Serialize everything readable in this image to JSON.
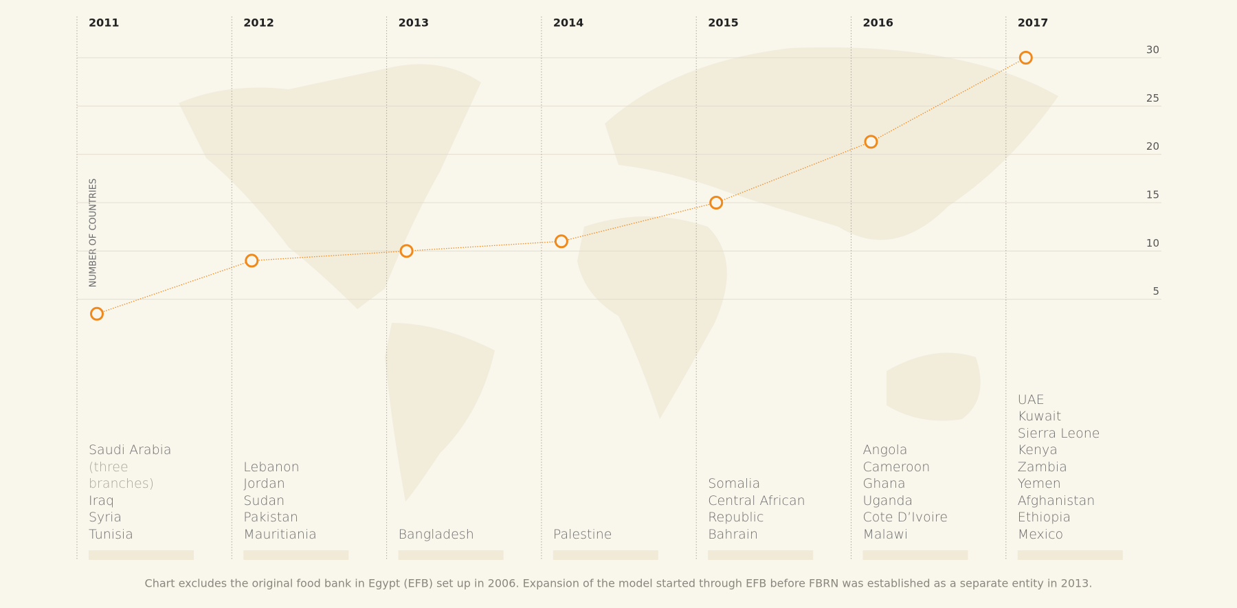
{
  "chart_data": {
    "type": "line",
    "categories": [
      "2011",
      "2012",
      "2013",
      "2014",
      "2015",
      "2016",
      "2017"
    ],
    "values": [
      3.5,
      9,
      10,
      11,
      15,
      21.3,
      30
    ],
    "color": "#f0891c",
    "y_label": "NUMBER OF COUNTRIES",
    "ylim": [
      0,
      30
    ],
    "yticks": [
      5,
      10,
      15,
      20,
      25,
      30
    ],
    "grid": true,
    "countries": [
      [
        {
          "text": "Saudi Arabia"
        },
        {
          "text": "(three branches)",
          "muted": true
        },
        {
          "text": "Iraq"
        },
        {
          "text": "Syria"
        },
        {
          "text": "Tunisia"
        }
      ],
      [
        {
          "text": "Lebanon"
        },
        {
          "text": "Jordan"
        },
        {
          "text": "Sudan"
        },
        {
          "text": "Pakistan"
        },
        {
          "text": "Mauritiania"
        }
      ],
      [
        {
          "text": "Bangladesh"
        }
      ],
      [
        {
          "text": "Palestine"
        }
      ],
      [
        {
          "text": "Somalia"
        },
        {
          "text": "Central African Republic"
        },
        {
          "text": "Bahrain"
        }
      ],
      [
        {
          "text": "Angola"
        },
        {
          "text": "Cameroon"
        },
        {
          "text": "Ghana"
        },
        {
          "text": "Uganda"
        },
        {
          "text": "Cote D’Ivoire"
        },
        {
          "text": "Malawi"
        }
      ],
      [
        {
          "text": "UAE"
        },
        {
          "text": "Kuwait"
        },
        {
          "text": "Sierra Leone"
        },
        {
          "text": "Kenya"
        },
        {
          "text": "Zambia"
        },
        {
          "text": "Yemen"
        },
        {
          "text": "Afghanistan"
        },
        {
          "text": "Ethiopia"
        },
        {
          "text": "Mexico"
        }
      ]
    ],
    "note": "Chart excludes the original food bank in Egypt (EFB) set up in 2006. Expansion of the model started through EFB before FBRN was established as a separate entity in 2013."
  }
}
